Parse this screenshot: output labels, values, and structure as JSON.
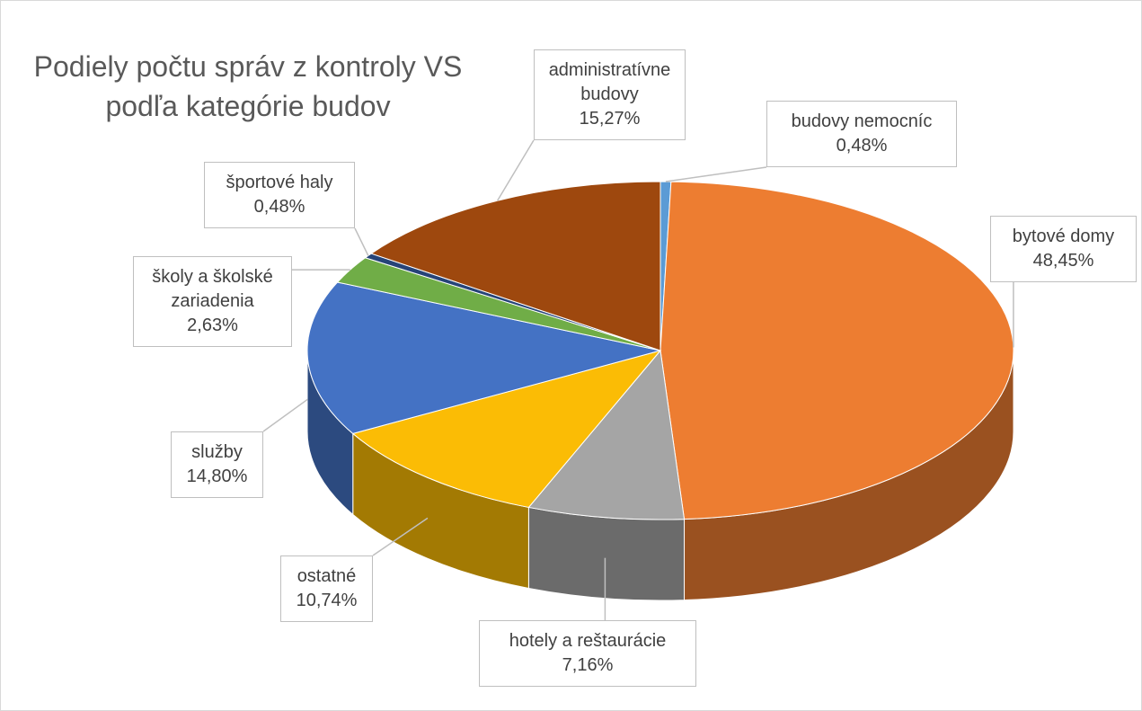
{
  "chart_data": {
    "type": "pie",
    "title": "Podiely počtu správ z kontroly VS podľa kategórie budov",
    "categories": [
      "budovy nemocníc",
      "bytové domy",
      "hotely a reštaurácie",
      "ostatné",
      "služby",
      "školy a školské zariadenia",
      "športové haly",
      "administratívne budovy"
    ],
    "values": [
      0.48,
      48.45,
      7.16,
      10.74,
      14.8,
      2.63,
      0.48,
      15.27
    ],
    "value_labels": [
      "0,48%",
      "48,45%",
      "7,16%",
      "10,74%",
      "14,80%",
      "2,63%",
      "0,48%",
      "15,27%"
    ],
    "colors": [
      "#5b9bd5",
      "#ed7d31",
      "#a5a5a5",
      "#fbbc05",
      "#4472c4",
      "#70ad47",
      "#264478",
      "#9e480e"
    ]
  }
}
